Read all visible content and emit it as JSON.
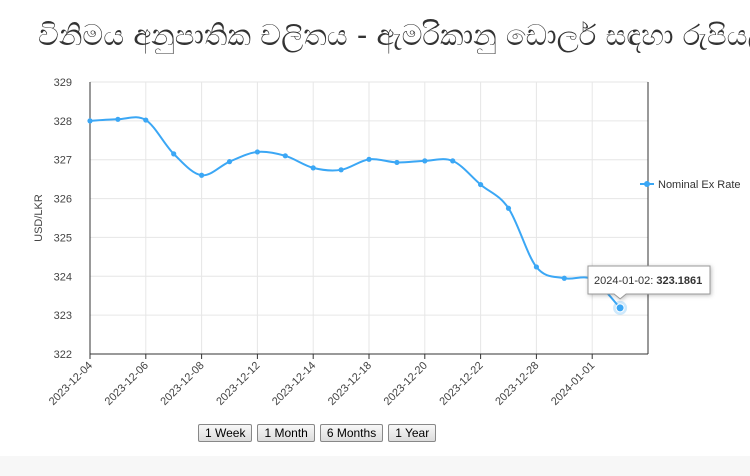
{
  "title": "විනිමය අනුපාතික චලිතය - ඇමරිකානු ඩොලර් සඳහා රුපියල්",
  "buttons": [
    "1 Week",
    "1 Month",
    "6 Months",
    "1 Year"
  ],
  "tooltip": {
    "label": "2024-01-02: ",
    "value": "323.1861"
  },
  "colors": {
    "series": "#3ba7f5",
    "grid": "#e6e6e6",
    "axis": "#333333"
  },
  "chart_data": {
    "type": "line",
    "ylabel": "USD/LKR",
    "xlabel": "",
    "ylim": [
      322,
      329
    ],
    "yticks": [
      322,
      323,
      324,
      325,
      326,
      327,
      328,
      329
    ],
    "legend": {
      "position": "right",
      "entries": [
        "Nominal Ex Rate"
      ]
    },
    "grid": true,
    "xtick_labels": [
      "2023-12-04",
      "2023-12-06",
      "2023-12-08",
      "2023-12-12",
      "2023-12-14",
      "2023-12-18",
      "2023-12-20",
      "2023-12-22",
      "2023-12-28",
      "2024-01-01"
    ],
    "series": [
      {
        "name": "Nominal Ex Rate",
        "x": [
          "2023-12-04",
          "2023-12-05",
          "2023-12-06",
          "2023-12-07",
          "2023-12-08",
          "2023-12-11",
          "2023-12-12",
          "2023-12-13",
          "2023-12-14",
          "2023-12-15",
          "2023-12-18",
          "2023-12-19",
          "2023-12-20",
          "2023-12-21",
          "2023-12-22",
          "2023-12-27",
          "2023-12-28",
          "2023-12-29",
          "2024-01-01",
          "2024-01-02"
        ],
        "values": [
          328.0,
          328.04,
          328.02,
          327.15,
          326.6,
          326.95,
          327.2,
          327.1,
          326.79,
          326.74,
          327.01,
          326.93,
          326.97,
          326.97,
          326.36,
          325.75,
          324.24,
          323.95,
          323.92,
          323.1861
        ]
      }
    ]
  }
}
